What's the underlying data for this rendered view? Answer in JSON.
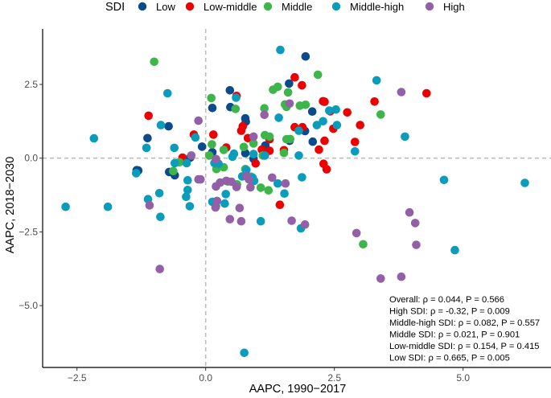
{
  "chart_data": {
    "type": "scatter",
    "title": "",
    "xlabel": "AAPC, 1990−2017",
    "ylabel": "AAPC, 2018−2030",
    "xlim": [
      -3.0,
      6.7
    ],
    "ylim": [
      -7.0,
      4.2
    ],
    "xticks": [
      -2.5,
      0.0,
      2.5,
      5.0
    ],
    "xtick_labels": [
      "−2.5",
      "0.0",
      "2.5",
      "5.0"
    ],
    "yticks": [
      2.5,
      0.0,
      -2.5,
      -5.0
    ],
    "ytick_labels": [
      "2.5",
      "0.0",
      "−2.5",
      "−5.0"
    ],
    "grid": false,
    "reference_lines": {
      "x": 0,
      "y": 0,
      "style": "dashed"
    },
    "legend": {
      "title": "SDI",
      "placement": "top",
      "entries": [
        {
          "name": "Low",
          "color": "#0b4a8b"
        },
        {
          "name": "Low-middle",
          "color": "#ee0000"
        },
        {
          "name": "Middle",
          "color": "#3db54a"
        },
        {
          "name": "Middle-high",
          "color": "#0b9cbb"
        },
        {
          "name": "High",
          "color": "#9360a8"
        }
      ]
    },
    "annotations": [
      "Overall: ρ = 0.044, P = 0.566",
      "High SDI: ρ = -0.32, P = 0.009",
      "Middle-high SDI: ρ = 0.082, P = 0.557",
      "Middle SDI: ρ = 0.021, P = 0.901",
      "Low-middle SDI: ρ = 0.154, P = 0.415",
      "Low SDI: ρ = 0.665, P = 0.005"
    ],
    "series": [
      {
        "name": "Low",
        "points": [
          [
            -1.13,
            0.68
          ],
          [
            -0.07,
            0.39
          ],
          [
            -0.6,
            -0.58
          ],
          [
            -0.72,
            1.08
          ],
          [
            0.13,
            1.7
          ],
          [
            0.47,
            2.3
          ],
          [
            1.93,
            0.92
          ],
          [
            1.94,
            3.45
          ],
          [
            0.48,
            1.73
          ],
          [
            0.78,
            1.24
          ],
          [
            0.77,
            1.35
          ],
          [
            1.62,
            2.53
          ],
          [
            2.07,
            1.58
          ],
          [
            0.77,
            0.17
          ],
          [
            0.13,
            0.2
          ],
          [
            -1.34,
            -0.41
          ],
          [
            -0.71,
            -0.47
          ],
          [
            -1.31,
            -0.42
          ],
          [
            1.63,
            0.59
          ],
          [
            2.08,
            0.56
          ],
          [
            0.93,
            -0.02
          ],
          [
            -0.3,
            0.02
          ],
          [
            1.16,
            0.43
          ]
        ]
      },
      {
        "name": "Low-middle",
        "points": [
          [
            -1.11,
            1.44
          ],
          [
            -0.23,
            0.8
          ],
          [
            -0.45,
            0.02
          ],
          [
            0.6,
            2.11
          ],
          [
            1.73,
            2.74
          ],
          [
            1.87,
            2.47
          ],
          [
            2.28,
            1.93
          ],
          [
            4.29,
            2.2
          ],
          [
            2.31,
            1.91
          ],
          [
            0.72,
            1.08
          ],
          [
            0.69,
            0.93
          ],
          [
            1.73,
            1.05
          ],
          [
            1.88,
            1.05
          ],
          [
            0.15,
            0.8
          ],
          [
            0.82,
            0.68
          ],
          [
            1.24,
            0.64
          ],
          [
            1.24,
            0.25
          ],
          [
            2.31,
            0.59
          ],
          [
            0.4,
            0.36
          ],
          [
            1.09,
            0.29
          ],
          [
            1.52,
            0.27
          ],
          [
            2.2,
            0.29
          ],
          [
            0.97,
            -0.18
          ],
          [
            2.29,
            -0.19
          ],
          [
            2.35,
            -0.38
          ],
          [
            1.44,
            -1.58
          ],
          [
            2.9,
            0.55
          ],
          [
            3.0,
            1.12
          ],
          [
            2.75,
            1.55
          ],
          [
            2.42,
            1.59
          ],
          [
            2.48,
            1.0
          ],
          [
            3.28,
            1.92
          ]
        ]
      },
      {
        "name": "Middle",
        "points": [
          [
            -1.0,
            3.27
          ],
          [
            1.6,
            2.23
          ],
          [
            2.18,
            2.83
          ],
          [
            1.4,
            2.42
          ],
          [
            0.11,
            2.04
          ],
          [
            1.31,
            2.32
          ],
          [
            1.83,
            1.78
          ],
          [
            1.57,
            1.74
          ],
          [
            1.54,
            1.82
          ],
          [
            1.94,
            1.81
          ],
          [
            0.58,
            1.67
          ],
          [
            1.14,
            1.69
          ],
          [
            3.4,
            1.48
          ],
          [
            0.12,
            0.47
          ],
          [
            0.74,
            0.38
          ],
          [
            1.15,
            0.78
          ],
          [
            1.57,
            0.64
          ],
          [
            1.64,
            0.65
          ],
          [
            0.35,
            0.28
          ],
          [
            0.93,
            0.5
          ],
          [
            1.24,
            0.73
          ],
          [
            0.07,
            0.09
          ],
          [
            1.11,
            0.09
          ],
          [
            1.52,
            0.18
          ],
          [
            0.35,
            -0.31
          ],
          [
            0.77,
            -0.37
          ],
          [
            -0.51,
            -0.14
          ],
          [
            -0.63,
            -0.44
          ],
          [
            0.43,
            -0.79
          ],
          [
            0.61,
            -0.89
          ],
          [
            1.07,
            -1.0
          ],
          [
            3.06,
            -2.92
          ],
          [
            0.88,
            -0.63
          ],
          [
            1.22,
            -1.09
          ],
          [
            0.21,
            -0.37
          ]
        ]
      },
      {
        "name": "Middle-high",
        "points": [
          [
            -2.72,
            -1.65
          ],
          [
            -2.17,
            0.67
          ],
          [
            -1.9,
            -1.65
          ],
          [
            -1.35,
            -0.51
          ],
          [
            -1.15,
            0.35
          ],
          [
            -1.12,
            -1.39
          ],
          [
            -0.87,
            1.12
          ],
          [
            -0.74,
            2.2
          ],
          [
            -0.9,
            -1.19
          ],
          [
            -0.88,
            -1.99
          ],
          [
            -0.6,
            -0.17
          ],
          [
            -0.37,
            -0.17
          ],
          [
            -0.31,
            -1.63
          ],
          [
            -0.2,
            0.7
          ],
          [
            -0.35,
            -0.75
          ],
          [
            0.17,
            -0.17
          ],
          [
            0.2,
            -1.63
          ],
          [
            0.37,
            -1.54
          ],
          [
            0.59,
            2.05
          ],
          [
            0.52,
            0.05
          ],
          [
            1.45,
            3.67
          ],
          [
            0.79,
            -0.4
          ],
          [
            0.94,
            -0.77
          ],
          [
            0.91,
            -0.66
          ],
          [
            0.71,
            -0.62
          ],
          [
            1.53,
            -1.2
          ],
          [
            1.87,
            -0.65
          ],
          [
            1.81,
            0.93
          ],
          [
            2.16,
            1.12
          ],
          [
            2.28,
            1.25
          ],
          [
            2.4,
            1.61
          ],
          [
            2.53,
            1.65
          ],
          [
            2.55,
            1.12
          ],
          [
            3.32,
            2.64
          ],
          [
            3.87,
            0.73
          ],
          [
            2.9,
            0.23
          ],
          [
            1.81,
            0.09
          ],
          [
            1.15,
            0.09
          ],
          [
            0.93,
            0.14
          ],
          [
            1.42,
            1.37
          ],
          [
            0.55,
            0.15
          ],
          [
            0.25,
            -0.19
          ],
          [
            -0.61,
            0.35
          ],
          [
            -0.35,
            -1.08
          ],
          [
            4.63,
            -0.74
          ],
          [
            6.2,
            -0.84
          ],
          [
            4.84,
            -3.12
          ],
          [
            0.75,
            -6.6
          ],
          [
            1.85,
            -2.38
          ],
          [
            1.07,
            -2.14
          ],
          [
            -0.38,
            -1.31
          ],
          [
            0.39,
            -1.22
          ],
          [
            0.13,
            -1.48
          ],
          [
            1.4,
            -0.86
          ]
        ]
      },
      {
        "name": "High",
        "points": [
          [
            -0.14,
            1.27
          ],
          [
            0.93,
            0.73
          ],
          [
            0.2,
            -0.03
          ],
          [
            -0.28,
            0.09
          ],
          [
            -1.09,
            -1.6
          ],
          [
            -0.14,
            -0.72
          ],
          [
            -0.89,
            -3.76
          ],
          [
            0.84,
            -0.72
          ],
          [
            1.63,
            1.85
          ],
          [
            1.14,
            1.47
          ],
          [
            0.19,
            -1.67
          ],
          [
            0.4,
            -0.77
          ],
          [
            0.66,
            -1.69
          ],
          [
            0.79,
            -0.61
          ],
          [
            0.22,
            -1.45
          ],
          [
            0.47,
            -2.07
          ],
          [
            0.69,
            -2.14
          ],
          [
            0.87,
            -0.99
          ],
          [
            1.29,
            -0.66
          ],
          [
            1.55,
            -0.86
          ],
          [
            1.67,
            -2.12
          ],
          [
            1.93,
            -2.25
          ],
          [
            3.96,
            -1.84
          ],
          [
            4.07,
            -2.2
          ],
          [
            4.09,
            -2.94
          ],
          [
            2.93,
            -2.54
          ],
          [
            3.4,
            -4.08
          ],
          [
            3.8,
            -4.02
          ],
          [
            3.8,
            2.24
          ],
          [
            0.5,
            -0.8
          ],
          [
            0.6,
            -0.98
          ],
          [
            -0.1,
            -0.72
          ],
          [
            0.28,
            -0.83
          ],
          [
            0.2,
            -0.96
          ]
        ]
      }
    ]
  }
}
